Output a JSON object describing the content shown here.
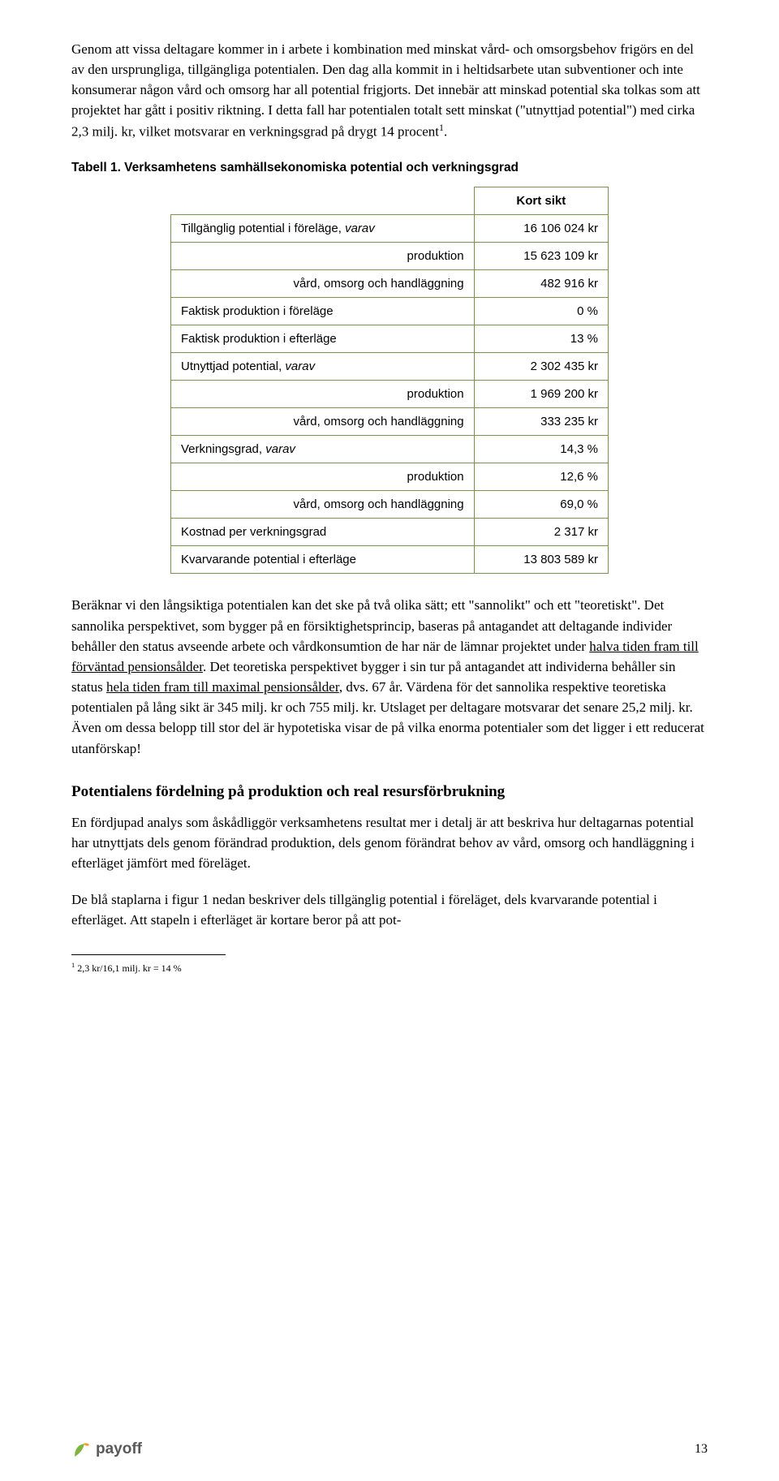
{
  "para1": "Genom att vissa deltagare kommer in i arbete i kombination med minskat vård- och omsorgsbehov frigörs en del av den ursprungliga, tillgängliga potentialen. Den dag alla kommit in i heltidsarbete utan subventioner och inte konsumerar någon vård och omsorg har all potential frigjorts. Det innebär att minskad potential ska tolkas som att projektet har gått i positiv riktning. I detta fall har potentialen totalt sett minskat (\"utnyttjad potential\") med cirka 2,3 milj. kr, vilket motsvarar en verkningsgrad på drygt 14 procent",
  "para1_sup": "1",
  "para1_tail": ".",
  "tableCaption": "Tabell 1. Verksamhetens samhällsekonomiska potential och verkningsgrad",
  "table": {
    "headerRight": "Kort sikt",
    "rows": [
      {
        "label": "Tillgänglig potential i föreläge, ",
        "italic": "varav",
        "val": "16 106 024 kr",
        "indent": false
      },
      {
        "label": "produktion",
        "val": "15 623 109 kr",
        "indent": true
      },
      {
        "label": "vård, omsorg och handläggning",
        "val": "482 916 kr",
        "indent": true
      },
      {
        "label": "Faktisk produktion i föreläge",
        "val": "0 %",
        "indent": false
      },
      {
        "label": "Faktisk produktion i efterläge",
        "val": "13 %",
        "indent": false
      },
      {
        "label": "Utnyttjad potential, ",
        "italic": "varav",
        "val": "2 302 435 kr",
        "indent": false
      },
      {
        "label": "produktion",
        "val": "1 969 200 kr",
        "indent": true
      },
      {
        "label": "vård, omsorg och handläggning",
        "val": "333 235 kr",
        "indent": true
      },
      {
        "label": "Verkningsgrad, ",
        "italic": "varav",
        "val": "14,3 %",
        "indent": false
      },
      {
        "label": "produktion",
        "val": "12,6 %",
        "indent": true
      },
      {
        "label": "vård, omsorg och handläggning",
        "val": "69,0 %",
        "indent": true
      },
      {
        "label": "Kostnad per verkningsgrad",
        "val": "2 317 kr",
        "indent": false
      },
      {
        "label": "Kvarvarande potential i efterläge",
        "val": "13 803 589 kr",
        "indent": false
      }
    ],
    "borderColor": "#7a9447"
  },
  "para2_a": "Beräknar vi den långsiktiga potentialen kan det ske på två olika sätt; ett \"sannolikt\" och ett \"teoretiskt\". Det sannolika perspektivet, som bygger på en försiktighetsprincip, baseras på antagandet att deltagande individer behåller den status avseende arbete och vårdkonsumtion de har när de lämnar projektet under ",
  "para2_u1": "halva tiden fram till förväntad pensionsålder",
  "para2_b": ". Det teoretiska perspektivet bygger i sin tur på antagandet att individerna behåller sin status ",
  "para2_u2": "hela tiden fram till maximal pensionsålder",
  "para2_c": ", dvs. 67 år. Värdena för det sannolika respektive teoretiska potentialen på lång sikt är 345 milj. kr och 755 milj. kr. Utslaget per deltagare motsvarar det senare 25,2 milj. kr. Även om dessa belopp till stor del är hypotetiska visar de på vilka enorma potentialer som det ligger i ett reducerat utanförskap!",
  "sectionHead": "Potentialens fördelning på produktion och real resursförbrukning",
  "para3": "En fördjupad analys som åskådliggör verksamhetens resultat mer i detalj är att beskriva hur deltagarnas potential har utnyttjats dels genom förändrad produktion, dels genom förändrat behov av vård, omsorg och handläggning i efterläget jämfört med föreläget.",
  "para4": "De blå staplarna i figur 1 nedan beskriver dels tillgänglig potential i föreläget, dels kvarvarande potential i efterläget. Att stapeln i efterläget är kortare beror på att pot-",
  "footnote_sup": "1",
  "footnote": " 2,3 kr/16,1 milj. kr = 14 %",
  "logoText": "payoff",
  "pageNum": "13",
  "logoColors": {
    "leaf": "#7fb53f",
    "bud": "#f39a2a"
  }
}
